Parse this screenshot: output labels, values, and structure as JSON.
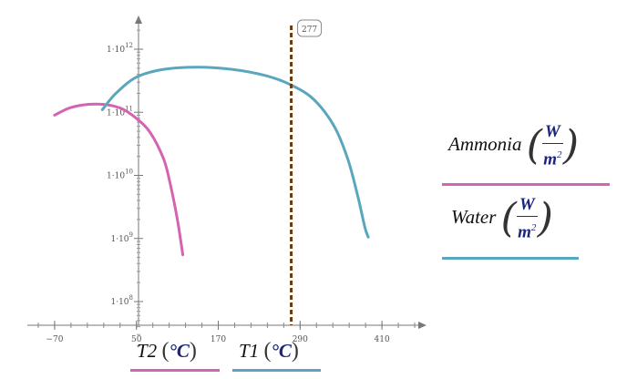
{
  "chart_data": {
    "type": "line",
    "x_axis": {
      "min": -110,
      "max": 470,
      "ticks": [
        -70,
        50,
        170,
        290,
        410
      ],
      "tick_labels": [
        "−70",
        "50",
        "170",
        "290",
        "410"
      ]
    },
    "y_axis": {
      "scale": "log",
      "min_exp": 7.3,
      "max_exp": 12.5,
      "ticks": [
        {
          "exp": 8,
          "mantissa": "1·10",
          "power": "8"
        },
        {
          "exp": 9,
          "mantissa": "1·10",
          "power": "9"
        },
        {
          "exp": 10,
          "mantissa": "1·10",
          "power": "10"
        },
        {
          "exp": 11,
          "mantissa": "1·10",
          "power": "11"
        },
        {
          "exp": 12,
          "mantissa": "1·10",
          "power": "12"
        }
      ]
    },
    "marker": {
      "x": 277,
      "label": "277",
      "color": "#6b3a0c"
    },
    "series": [
      {
        "name": "Ammonia",
        "color": "#d463b1",
        "x": [
          -70,
          -50,
          -30,
          -10,
          10,
          30,
          50,
          70,
          90,
          100,
          110,
          115,
          118
        ],
        "y": [
          90000000000.0,
          115000000000.0,
          130000000000.0,
          135000000000.0,
          130000000000.0,
          112000000000.0,
          80000000000.0,
          48000000000.0,
          18000000000.0,
          7000000000.0,
          2000000000.0,
          900000000.0,
          550000000.0
        ]
      },
      {
        "name": "Water",
        "color": "#5aa7bd",
        "x": [
          0,
          20,
          50,
          90,
          140,
          190,
          240,
          277,
          310,
          340,
          360,
          375,
          385,
          390
        ],
        "y": [
          110000000000.0,
          200000000000.0,
          360000000000.0,
          480000000000.0,
          520000000000.0,
          480000000000.0,
          380000000000.0,
          270000000000.0,
          160000000000.0,
          60000000000.0,
          18000000000.0,
          4500000000.0,
          1500000000.0,
          1050000000.0
        ]
      }
    ]
  },
  "legend": [
    {
      "name": "Ammonia",
      "unit_num": "W",
      "unit_den": "m",
      "unit_pow": "2",
      "color": "#d463b1"
    },
    {
      "name": "Water",
      "unit_num": "W",
      "unit_den": "m",
      "unit_pow": "2",
      "color": "#5aa7bd"
    }
  ],
  "axis_titles": [
    {
      "var": "T2",
      "unit": "°C",
      "color": "#d463b1"
    },
    {
      "var": "T1",
      "unit": "°C",
      "color": "#5aa7bd"
    }
  ]
}
